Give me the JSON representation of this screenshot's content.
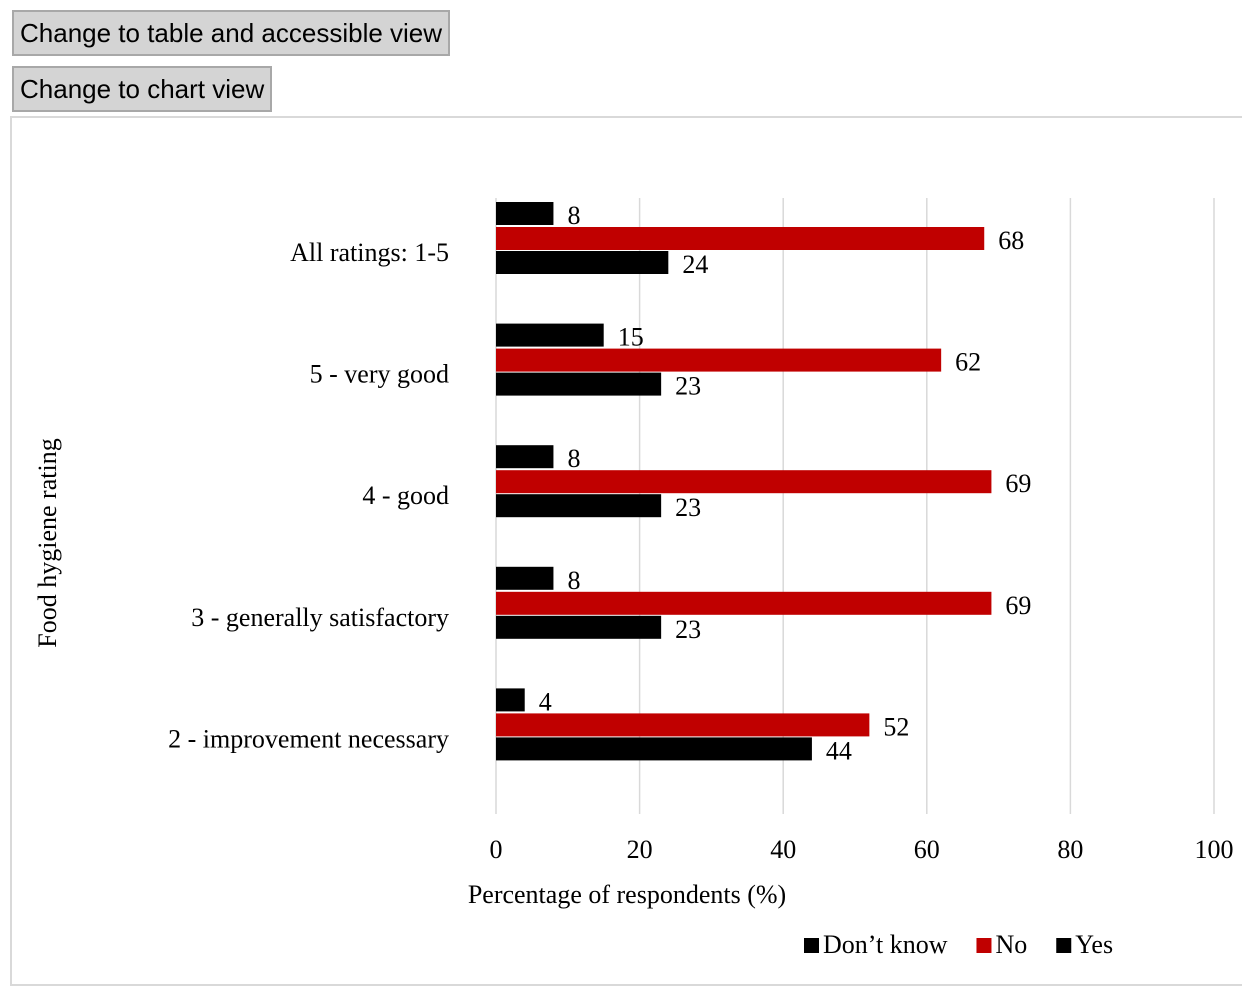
{
  "buttons": {
    "table_view": "Change to table and accessible view",
    "chart_view": "Change to chart view"
  },
  "chart_data": {
    "type": "bar",
    "orientation": "horizontal",
    "categories": [
      "All ratings: 1-5",
      "5 - very good",
      "4 - good",
      "3 - generally satisfactory",
      "2 - improvement necessary"
    ],
    "series": [
      {
        "name": "Don’t know",
        "color": "#000000",
        "values": [
          8,
          15,
          8,
          8,
          4
        ]
      },
      {
        "name": "No",
        "color": "#c00000",
        "values": [
          68,
          62,
          69,
          69,
          52
        ]
      },
      {
        "name": "Yes",
        "color": "#000000",
        "values": [
          24,
          23,
          23,
          23,
          44
        ]
      }
    ],
    "xlabel": "Percentage of respondents (%)",
    "ylabel": "Food hygiene rating",
    "xlim": [
      0,
      100
    ],
    "xticks": [
      "0",
      "20",
      "40",
      "60",
      "80",
      "100"
    ],
    "grid": "vertical",
    "legend": "bottom-right",
    "data_labels": true
  }
}
